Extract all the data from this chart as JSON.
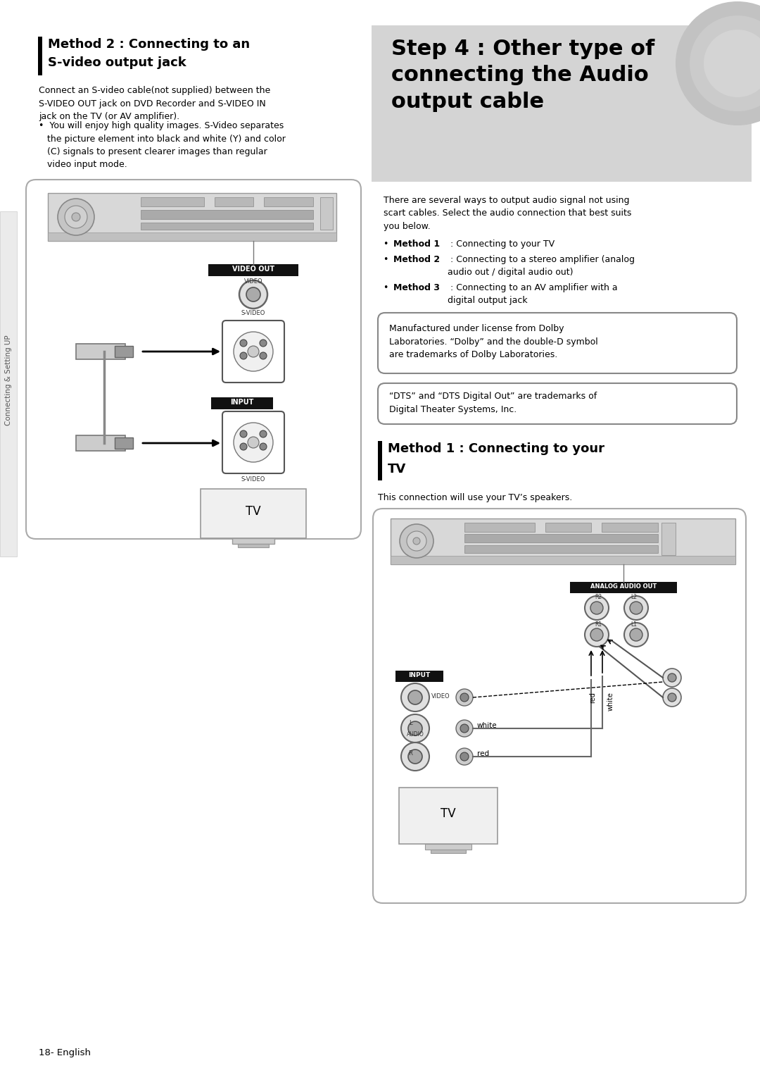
{
  "page_bg": "#ffffff",
  "sidebar_text": "Connecting & Setting UP",
  "header_title_line1": "Step 4 : Other type of",
  "header_title_line2": "connecting the Audio",
  "header_title_line3": "output cable",
  "method2_title_line1": "Method 2 : Connecting to an",
  "method2_title_line2": "S-video output jack",
  "method2_body": "Connect an S-video cable(not supplied) between the\nS-VIDEO OUT jack on DVD Recorder and S-VIDEO IN\njack on the TV (or AV amplifier).",
  "method2_bullet": "•  You will enjoy high quality images. S-Video separates\n   the picture element into black and white (Y) and color\n   (C) signals to present clearer images than regular\n   video input mode.",
  "right_intro": "There are several ways to output audio signal not using\nscart cables. Select the audio connection that best suits\nyou below.",
  "dolby_text": "Manufactured under license from Dolby\nLaboratories. “Dolby” and the double-D symbol\nare trademarks of Dolby Laboratories.",
  "dts_text": "“DTS” and “DTS Digital Out” are trademarks of\nDigital Theater Systems, Inc.",
  "method1_title_line1": "Method 1 : Connecting to your",
  "method1_title_line2": "TV",
  "method1_body": "This connection will use your TV’s speakers.",
  "footer": "18- English",
  "video_out_label": "VIDEO OUT",
  "video_label": "VIDEO",
  "svideo_label": "S-VIDEO",
  "input_label": "INPUT",
  "analog_audio_out_label": "ANALOG AUDIO OUT",
  "white_label": "white",
  "red_label": "red",
  "audio_label": "AUDIO",
  "tv_label": "TV",
  "r2": "R2",
  "l2": "L2",
  "r1": "R1",
  "l1": "L1"
}
